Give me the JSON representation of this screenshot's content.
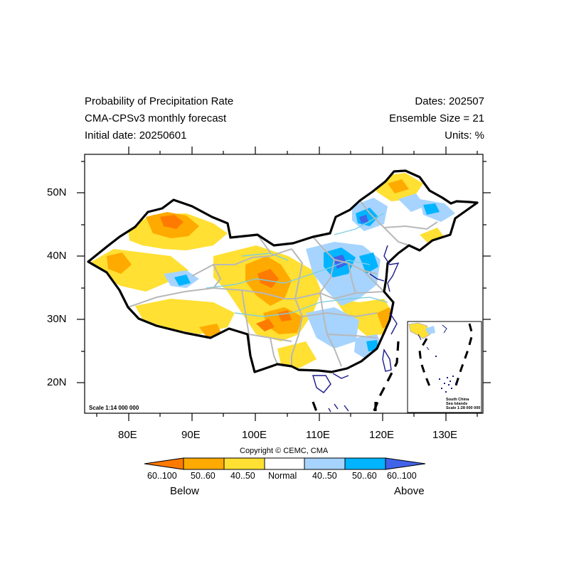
{
  "title": {
    "left": [
      "Probability of Precipitation Rate",
      "CMA-CPSv3 monthly forecast",
      "Initial date: 20250601"
    ],
    "right": [
      "Dates: 202507",
      "Ensemble Size = 21",
      "Units: %"
    ]
  },
  "map": {
    "lon_range": [
      73,
      135
    ],
    "lat_range": [
      15,
      56
    ],
    "lon_ticks": [
      "80E",
      "90E",
      "100E",
      "110E",
      "120E",
      "130E"
    ],
    "lat_ticks": [
      "50N",
      "40N",
      "30N",
      "20N"
    ],
    "scale_main": "Scale 1:14 000 000",
    "inset": {
      "label": [
        "South China",
        "Sea Islands",
        "Scale 1:28 000 000"
      ]
    }
  },
  "copyright": "Copyright © CEMC, CMA",
  "colorbar": {
    "labels": [
      "60..100",
      "50..60",
      "40..50",
      "Normal",
      "40..50",
      "50..60",
      "60..100"
    ],
    "colors": [
      "#ff7a00",
      "#ffaa00",
      "#ffe033",
      "#ffffff",
      "#a6d4ff",
      "#00b4ff",
      "#4163e8"
    ],
    "below_label": "Below",
    "above_label": "Above"
  }
}
